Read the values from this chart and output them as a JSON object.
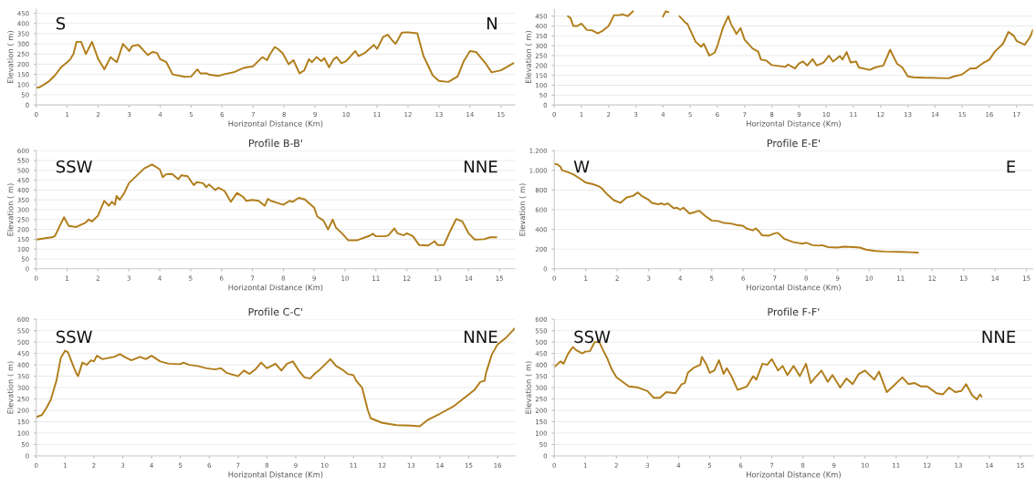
{
  "chart_data": [
    {
      "type": "line",
      "xlabel": "Horizontal Distance (Km)",
      "ylabel": "Elevation ( m)",
      "color": "#b07d1a",
      "grid": "y",
      "annotations": [
        "S",
        "N"
      ],
      "xlim": [
        0,
        15.45
      ],
      "ylim": [
        0,
        470
      ],
      "xticks": [
        0,
        1,
        2,
        3,
        4,
        5,
        6,
        7,
        8,
        9,
        10,
        11,
        12,
        13,
        14,
        15
      ],
      "yticks": [
        0,
        50,
        100,
        150,
        200,
        250,
        300,
        350,
        400,
        450
      ],
      "x": [
        0,
        0.1,
        0.2,
        0.4,
        0.6,
        0.8,
        1.0,
        1.1,
        1.2,
        1.3,
        1.45,
        1.6,
        1.8,
        2.0,
        2.2,
        2.4,
        2.6,
        2.8,
        3.0,
        3.1,
        3.3,
        3.6,
        3.75,
        3.9,
        4.0,
        4.2,
        4.4,
        4.8,
        5.0,
        5.2,
        5.3,
        5.5,
        5.6,
        5.9,
        6.1,
        6.4,
        6.7,
        6.8,
        7.0,
        7.3,
        7.45,
        7.55,
        7.7,
        7.8,
        7.95,
        8.15,
        8.3,
        8.5,
        8.65,
        8.8,
        8.9,
        9.05,
        9.2,
        9.3,
        9.45,
        9.6,
        9.7,
        9.85,
        10.0,
        10.3,
        10.4,
        10.6,
        10.9,
        11.0,
        11.2,
        11.35,
        11.5,
        11.6,
        11.8,
        12.0,
        12.3,
        12.5,
        12.8,
        13.0,
        13.3,
        13.6,
        13.8,
        14.0,
        14.2,
        14.5,
        14.7,
        15.0,
        15.4
      ],
      "values": [
        85,
        87,
        95,
        115,
        145,
        185,
        210,
        225,
        250,
        310,
        310,
        250,
        310,
        225,
        175,
        235,
        210,
        300,
        265,
        290,
        295,
        245,
        260,
        255,
        225,
        210,
        150,
        138,
        140,
        175,
        155,
        155,
        148,
        143,
        152,
        162,
        182,
        185,
        190,
        235,
        220,
        250,
        285,
        275,
        255,
        200,
        220,
        155,
        170,
        225,
        210,
        235,
        215,
        230,
        185,
        225,
        235,
        205,
        215,
        265,
        240,
        255,
        295,
        275,
        335,
        345,
        315,
        300,
        355,
        357,
        352,
        240,
        145,
        118,
        113,
        140,
        215,
        265,
        260,
        205,
        160,
        170,
        205
      ]
    },
    {
      "type": "line",
      "xlabel": "Horizontal Distance (Km)",
      "ylabel": "Elevation ( m)",
      "color": "#b07d1a",
      "grid": "y",
      "xlim": [
        0,
        17.6
      ],
      "ylim": [
        0,
        485
      ],
      "xticks": [
        0,
        1,
        2,
        3,
        4,
        5,
        6,
        7,
        8,
        9,
        10,
        11,
        12,
        13,
        14,
        15,
        16,
        17
      ],
      "yticks": [
        0,
        50,
        100,
        150,
        200,
        250,
        300,
        350,
        400,
        450
      ],
      "x": [
        0.5,
        0.6,
        0.7,
        0.85,
        1.0,
        1.2,
        1.4,
        1.6,
        1.8,
        2.0,
        2.2,
        2.4,
        2.5,
        2.7,
        2.9,
        3.25,
        4.0,
        4.1,
        4.2,
        4.4,
        4.6,
        4.8,
        4.9,
        5.0,
        5.2,
        5.4,
        5.5,
        5.6,
        5.7,
        5.9,
        6.0,
        6.2,
        6.4,
        6.5,
        6.7,
        6.85,
        7.0,
        7.3,
        7.5,
        7.6,
        7.8,
        8.0,
        8.5,
        8.6,
        8.85,
        9.0,
        9.15,
        9.3,
        9.5,
        9.65,
        9.9,
        10.1,
        10.25,
        10.5,
        10.6,
        10.75,
        10.9,
        11.1,
        11.2,
        11.6,
        11.8,
        12.1,
        12.35,
        12.6,
        12.8,
        13.0,
        13.2,
        13.6,
        14.5,
        14.7,
        15.0,
        15.3,
        15.5,
        15.8,
        16.0,
        16.2,
        16.5,
        16.7,
        16.9,
        17.0,
        17.3,
        17.5,
        17.6
      ],
      "values": [
        450,
        440,
        400,
        400,
        412,
        380,
        378,
        363,
        378,
        400,
        455,
        455,
        460,
        450,
        475,
        null,
        448,
        475,
        470,
        null,
        450,
        420,
        410,
        380,
        320,
        295,
        310,
        280,
        250,
        265,
        300,
        390,
        450,
        410,
        360,
        390,
        330,
        285,
        270,
        230,
        225,
        202,
        193,
        205,
        185,
        210,
        220,
        200,
        232,
        200,
        215,
        250,
        220,
        248,
        230,
        268,
        215,
        220,
        190,
        178,
        190,
        200,
        280,
        210,
        190,
        145,
        140,
        138,
        135,
        145,
        155,
        185,
        185,
        215,
        230,
        270,
        310,
        370,
        350,
        325,
        305,
        345,
        380
      ]
    },
    {
      "type": "line",
      "title": "Profile B-B'",
      "xlabel": "Horizontal Distance (Km)",
      "ylabel": "Elevation ( m)",
      "color": "#b07d1a",
      "grid": "y",
      "annotations": [
        "SSW",
        "NNE"
      ],
      "xlim": [
        0,
        15.5
      ],
      "ylim": [
        0,
        600
      ],
      "xticks": [
        0,
        1,
        2,
        3,
        4,
        5,
        6,
        7,
        8,
        9,
        10,
        11,
        12,
        13,
        14,
        15
      ],
      "yticks": [
        0,
        50,
        100,
        150,
        200,
        250,
        300,
        350,
        400,
        450,
        500,
        550,
        600
      ],
      "x": [
        0,
        0.5,
        0.6,
        0.9,
        1.05,
        1.3,
        1.6,
        1.7,
        1.8,
        2.0,
        2.2,
        2.35,
        2.45,
        2.55,
        2.6,
        2.7,
        2.85,
        3.0,
        3.3,
        3.5,
        3.75,
        4.0,
        4.1,
        4.2,
        4.4,
        4.6,
        4.7,
        4.9,
        5.1,
        5.2,
        5.4,
        5.5,
        5.6,
        5.8,
        5.9,
        6.1,
        6.3,
        6.5,
        6.7,
        6.8,
        7.0,
        7.2,
        7.4,
        7.5,
        7.6,
        7.8,
        8.0,
        8.2,
        8.3,
        8.5,
        8.7,
        9.0,
        9.1,
        9.3,
        9.45,
        9.6,
        9.7,
        9.9,
        10.1,
        10.4,
        10.8,
        10.9,
        11.0,
        11.3,
        11.4,
        11.6,
        11.7,
        11.9,
        12.0,
        12.2,
        12.4,
        12.7,
        12.9,
        13.0,
        13.2,
        13.4,
        13.6,
        13.8,
        14.0,
        14.2,
        14.5,
        14.7,
        14.9
      ],
      "values": [
        148,
        160,
        165,
        262,
        218,
        212,
        235,
        250,
        240,
        270,
        345,
        320,
        340,
        325,
        370,
        350,
        385,
        435,
        480,
        510,
        530,
        505,
        465,
        480,
        482,
        455,
        475,
        470,
        425,
        440,
        435,
        415,
        428,
        400,
        412,
        395,
        340,
        385,
        365,
        345,
        350,
        345,
        320,
        355,
        345,
        335,
        325,
        345,
        340,
        360,
        352,
        310,
        265,
        245,
        200,
        250,
        210,
        180,
        145,
        145,
        168,
        178,
        165,
        165,
        170,
        205,
        180,
        170,
        180,
        165,
        120,
        118,
        140,
        120,
        120,
        190,
        253,
        240,
        180,
        148,
        150,
        160,
        160
      ]
    },
    {
      "type": "line",
      "title": "Profile E-E'",
      "xlabel": "Horizontal Distance (Km)",
      "ylabel": "Elevation ( m)",
      "color": "#b07d1a",
      "grid": "y",
      "annotations": [
        "W",
        "E"
      ],
      "xlim": [
        0,
        15.2
      ],
      "ylim": [
        0,
        1200
      ],
      "xticks": [
        0,
        1,
        2,
        3,
        4,
        5,
        6,
        7,
        8,
        9,
        10,
        11,
        12,
        13,
        14,
        15
      ],
      "yticks": [
        0,
        200,
        400,
        600,
        800,
        {
          "value": 1000,
          "label": "1.000"
        },
        {
          "value": 1200,
          "label": "1.200"
        }
      ],
      "x": [
        0,
        0.1,
        0.2,
        0.25,
        0.4,
        0.6,
        0.8,
        1.0,
        1.2,
        1.4,
        1.5,
        1.7,
        1.9,
        2.1,
        2.3,
        2.5,
        2.65,
        2.8,
        3.0,
        3.1,
        3.3,
        3.4,
        3.5,
        3.6,
        3.8,
        3.9,
        4.0,
        4.1,
        4.3,
        4.4,
        4.6,
        4.8,
        5.0,
        5.2,
        5.4,
        5.6,
        5.8,
        6.0,
        6.1,
        6.3,
        6.4,
        6.5,
        6.6,
        6.8,
        7.0,
        7.1,
        7.3,
        7.6,
        7.9,
        8.0,
        8.2,
        8.4,
        8.5,
        8.7,
        9.0,
        9.2,
        9.5,
        9.7,
        9.9,
        10.2,
        10.5,
        11.0,
        11.3,
        11.55
      ],
      "values": [
        1065,
        1060,
        1035,
        1000,
        985,
        960,
        920,
        875,
        862,
        840,
        820,
        750,
        695,
        670,
        725,
        740,
        775,
        735,
        700,
        670,
        655,
        665,
        650,
        665,
        615,
        620,
        600,
        620,
        560,
        570,
        590,
        535,
        490,
        485,
        465,
        460,
        445,
        435,
        410,
        390,
        410,
        380,
        340,
        335,
        360,
        365,
        305,
        270,
        255,
        265,
        240,
        235,
        240,
        220,
        215,
        225,
        220,
        215,
        195,
        180,
        175,
        172,
        168,
        165
      ]
    },
    {
      "type": "line",
      "title": "Profile C-C'",
      "xlabel": "Horizontal Distance (Km)",
      "ylabel": "Elevation ( m)",
      "color": "#b07d1a",
      "grid": "y",
      "annotations": [
        "SSW",
        "NNE"
      ],
      "xlim": [
        0,
        16.6
      ],
      "ylim": [
        0,
        600
      ],
      "xticks": [
        0,
        1,
        2,
        3,
        4,
        5,
        6,
        7,
        8,
        9,
        10,
        11,
        12,
        13,
        14,
        15,
        16
      ],
      "yticks": [
        0,
        50,
        100,
        150,
        200,
        250,
        300,
        350,
        400,
        450,
        500,
        550,
        600
      ],
      "x": [
        0,
        0.2,
        0.35,
        0.5,
        0.7,
        0.85,
        1.0,
        1.1,
        1.3,
        1.4,
        1.45,
        1.6,
        1.75,
        1.9,
        2.0,
        2.1,
        2.3,
        2.5,
        2.7,
        2.9,
        3.1,
        3.3,
        3.6,
        3.8,
        4.0,
        4.3,
        4.6,
        5.0,
        5.1,
        5.3,
        5.6,
        5.9,
        6.2,
        6.4,
        6.6,
        7.0,
        7.2,
        7.4,
        7.6,
        7.8,
        8.0,
        8.3,
        8.5,
        8.7,
        8.9,
        9.1,
        9.3,
        9.5,
        9.65,
        9.8,
        10.0,
        10.2,
        10.4,
        10.6,
        10.8,
        11.0,
        11.1,
        11.3,
        11.5,
        11.6,
        12.0,
        12.5,
        13.0,
        13.3,
        13.6,
        14.0,
        14.5,
        14.8,
        15.2,
        15.4,
        15.55,
        15.6,
        15.8,
        16.0,
        16.3,
        16.6
      ],
      "values": [
        170,
        180,
        210,
        245,
        330,
        430,
        462,
        455,
        390,
        360,
        350,
        410,
        400,
        420,
        415,
        440,
        425,
        430,
        435,
        447,
        432,
        420,
        435,
        425,
        440,
        415,
        405,
        403,
        410,
        400,
        395,
        385,
        380,
        385,
        365,
        350,
        375,
        360,
        380,
        410,
        385,
        405,
        375,
        405,
        415,
        375,
        345,
        340,
        360,
        375,
        400,
        425,
        395,
        380,
        360,
        355,
        330,
        300,
        200,
        165,
        145,
        135,
        133,
        130,
        160,
        185,
        220,
        250,
        290,
        325,
        330,
        365,
        445,
        490,
        520,
        560
      ]
    },
    {
      "type": "line",
      "title": "Profile F-F'",
      "xlabel": "Horizontal Distance (Km)",
      "ylabel": "Elevation ( m)",
      "color": "#b07d1a",
      "grid": "y",
      "annotations": [
        "SSW",
        "NNE"
      ],
      "xlim": [
        0,
        15.4
      ],
      "ylim": [
        0,
        600
      ],
      "xticks": [
        0,
        1,
        2,
        3,
        4,
        5,
        6,
        7,
        8,
        9,
        10,
        11,
        12,
        13,
        14,
        15
      ],
      "yticks": [
        0,
        50,
        100,
        150,
        200,
        250,
        300,
        350,
        400,
        450,
        500,
        550,
        600
      ],
      "x": [
        0,
        0.2,
        0.3,
        0.45,
        0.6,
        0.7,
        0.9,
        1.0,
        1.15,
        1.3,
        1.45,
        1.55,
        1.7,
        1.85,
        2.0,
        2.2,
        2.4,
        2.7,
        3.0,
        3.2,
        3.4,
        3.6,
        3.9,
        4.1,
        4.2,
        4.3,
        4.5,
        4.7,
        4.75,
        4.9,
        5.0,
        5.15,
        5.3,
        5.45,
        5.55,
        5.7,
        5.9,
        6.2,
        6.4,
        6.5,
        6.7,
        6.85,
        7.0,
        7.2,
        7.35,
        7.5,
        7.7,
        7.9,
        8.1,
        8.25,
        8.4,
        8.6,
        8.8,
        8.95,
        9.2,
        9.4,
        9.6,
        9.8,
        10.0,
        10.3,
        10.45,
        10.7,
        10.9,
        11.2,
        11.4,
        11.6,
        11.8,
        12.0,
        12.3,
        12.5,
        12.7,
        12.9,
        13.1,
        13.25,
        13.45,
        13.6,
        13.7,
        13.75
      ],
      "values": [
        390,
        415,
        405,
        450,
        478,
        465,
        450,
        458,
        460,
        500,
        500,
        470,
        430,
        380,
        345,
        325,
        305,
        300,
        285,
        255,
        255,
        280,
        275,
        315,
        320,
        365,
        388,
        400,
        435,
        400,
        365,
        375,
        420,
        360,
        385,
        350,
        290,
        305,
        350,
        335,
        405,
        400,
        425,
        375,
        395,
        355,
        395,
        350,
        405,
        320,
        345,
        375,
        325,
        355,
        300,
        340,
        315,
        360,
        375,
        335,
        370,
        280,
        305,
        345,
        315,
        320,
        305,
        305,
        275,
        270,
        300,
        280,
        285,
        315,
        265,
        248,
        270,
        260
      ]
    }
  ]
}
